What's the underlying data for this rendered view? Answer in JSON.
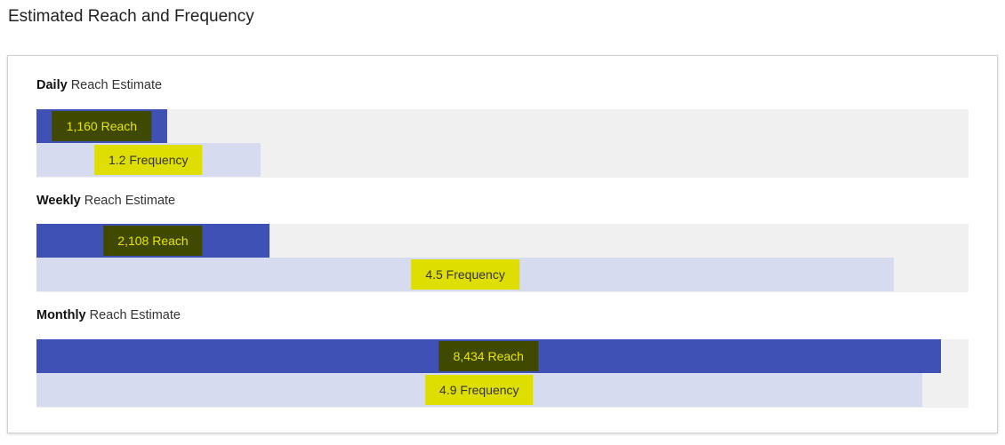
{
  "page_title": "Estimated Reach and Frequency",
  "colors": {
    "reach_bar": "#3f51b5",
    "frequency_bar": "#d7dbef",
    "track": "#f0f0f0",
    "highlight_dark": "#3f4a00",
    "highlight_yellow": "#dede00"
  },
  "sections": [
    {
      "period": "Daily",
      "label_suffix": "Reach Estimate",
      "reach_label": "1,160 Reach",
      "reach_fill_pct": 14,
      "frequency_label": "1.2 Frequency",
      "frequency_fill_pct": 24
    },
    {
      "period": "Weekly",
      "label_suffix": "Reach Estimate",
      "reach_label": "2,108 Reach",
      "reach_fill_pct": 25,
      "frequency_label": "4.5 Frequency",
      "frequency_fill_pct": 92
    },
    {
      "period": "Monthly",
      "label_suffix": "Reach Estimate",
      "reach_label": "8,434 Reach",
      "reach_fill_pct": 97,
      "frequency_label": "4.9 Frequency",
      "frequency_fill_pct": 95
    }
  ]
}
